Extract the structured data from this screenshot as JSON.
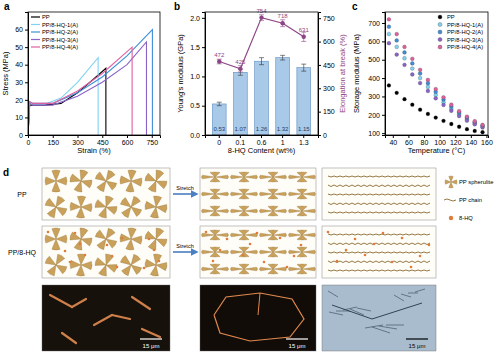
{
  "chart_data": [
    {
      "type": "line",
      "title": "a",
      "x_label": "Strain (%)",
      "y_label": "Stress (MPa)",
      "xlim": [
        0,
        800
      ],
      "xticks": [
        0,
        150,
        300,
        450,
        600,
        750
      ],
      "ylim": [
        0,
        70
      ],
      "yticks": [
        0,
        10,
        20,
        30,
        40,
        50,
        60
      ],
      "legend": "upper left",
      "line_style": "solid",
      "series": [
        {
          "name": "PP",
          "color": "#000000",
          "x": [
            0,
            10,
            30,
            100,
            200,
            300,
            400,
            472,
            472
          ],
          "values": [
            0,
            17,
            17,
            17,
            18,
            24,
            32,
            38,
            0
          ]
        },
        {
          "name": "PP/8-HQ-1(A)",
          "color": "#7fd3f0",
          "x": [
            0,
            10,
            30,
            100,
            200,
            300,
            425,
            425
          ],
          "values": [
            0,
            18,
            17.5,
            17.5,
            21,
            30,
            44,
            0
          ]
        },
        {
          "name": "PP/8-HQ-2(A)",
          "color": "#3f8fd8",
          "x": [
            0,
            10,
            30,
            150,
            300,
            450,
            600,
            754,
            754
          ],
          "values": [
            0,
            19,
            18,
            18,
            24,
            33,
            45,
            60,
            0
          ]
        },
        {
          "name": "PP/8-HQ-3(A)",
          "color": "#8a63c9",
          "x": [
            0,
            10,
            30,
            150,
            300,
            450,
            600,
            718,
            718
          ],
          "values": [
            0,
            18,
            17,
            17,
            22,
            30,
            40,
            53,
            0
          ]
        },
        {
          "name": "PP/8-HQ-4(A)",
          "color": "#e0609e",
          "x": [
            0,
            10,
            30,
            150,
            300,
            450,
            631,
            631
          ],
          "values": [
            0,
            19,
            18,
            18,
            25,
            35,
            50,
            0
          ]
        }
      ]
    },
    {
      "type": "bar",
      "title": "b",
      "x_label": "8-HQ Content (wt%)",
      "y_label": "Young's modulus (GPa)",
      "y2_label": "Elongation at break (%)",
      "categories": [
        "0",
        "0.1",
        "0.6",
        "1",
        "1.3"
      ],
      "ylim": [
        0,
        2.1
      ],
      "yticks": [
        {
          "value": 0,
          "label": "0.0"
        },
        {
          "value": 0.5,
          "label": "0.5"
        },
        {
          "value": 1,
          "label": "1.0"
        },
        {
          "value": 1.5,
          "label": "1.5"
        },
        {
          "value": 2,
          "label": "2.0"
        }
      ],
      "y2lim": [
        0,
        790
      ],
      "y2ticks": [
        0,
        150,
        300,
        450,
        600,
        750
      ],
      "data_labels": true,
      "series": [
        {
          "type": "bar",
          "color": "#a9c9e8",
          "values": [
            0.53,
            1.07,
            1.26,
            1.32,
            1.15
          ],
          "errors": [
            0.03,
            0.05,
            0.06,
            0.04,
            0.06
          ]
        },
        {
          "type": "line",
          "axis": "y2",
          "color": "#8e4585",
          "marker": "circle",
          "values": [
            472,
            425,
            754,
            718,
            631
          ],
          "errors": [
            15,
            20,
            18,
            22,
            30
          ]
        }
      ]
    },
    {
      "type": "scatter",
      "title": "c",
      "x_label": "Temperature (°C)",
      "y_label": "Storage modulus (MPa)",
      "x": [
        35,
        45,
        55,
        65,
        75,
        85,
        95,
        105,
        115,
        125,
        135,
        145,
        155
      ],
      "xlim": [
        30,
        162
      ],
      "xticks": [
        40,
        60,
        80,
        100,
        120,
        140,
        160
      ],
      "ylim": [
        90,
        760
      ],
      "yticks": [
        100,
        200,
        300,
        400,
        500,
        600,
        700
      ],
      "legend": "upper right",
      "marker": "circle",
      "series": [
        {
          "name": "PP",
          "color": "#000000",
          "values": [
            360,
            320,
            285,
            255,
            228,
            205,
            185,
            167,
            150,
            135,
            122,
            112,
            105
          ]
        },
        {
          "name": "PP/8-HQ-1(A)",
          "color": "#7fd3f0",
          "values": [
            640,
            570,
            508,
            452,
            400,
            352,
            308,
            268,
            233,
            202,
            176,
            154,
            136
          ]
        },
        {
          "name": "PP/8-HQ-2(A)",
          "color": "#3f8fd8",
          "values": [
            680,
            605,
            540,
            480,
            425,
            372,
            325,
            283,
            245,
            212,
            184,
            160,
            142
          ]
        },
        {
          "name": "PP/8-HQ-3(A)",
          "color": "#8a63c9",
          "values": [
            590,
            528,
            472,
            420,
            373,
            330,
            290,
            254,
            222,
            193,
            168,
            148,
            131
          ]
        },
        {
          "name": "PP/8-HQ-4(A)",
          "color": "#e0609e",
          "values": [
            720,
            640,
            570,
            505,
            445,
            390,
            340,
            295,
            255,
            220,
            190,
            165,
            145
          ]
        }
      ]
    }
  ],
  "diagram": {
    "title": "d",
    "rows": [
      "PP",
      "PP/8-HQ"
    ],
    "arrows": [
      "Stretch",
      "Stretch"
    ],
    "key": [
      "PP spherulite",
      "PP chain",
      "8-HQ"
    ],
    "scale_bars": [
      "15 μm",
      "15 μm",
      "15 μm"
    ]
  }
}
